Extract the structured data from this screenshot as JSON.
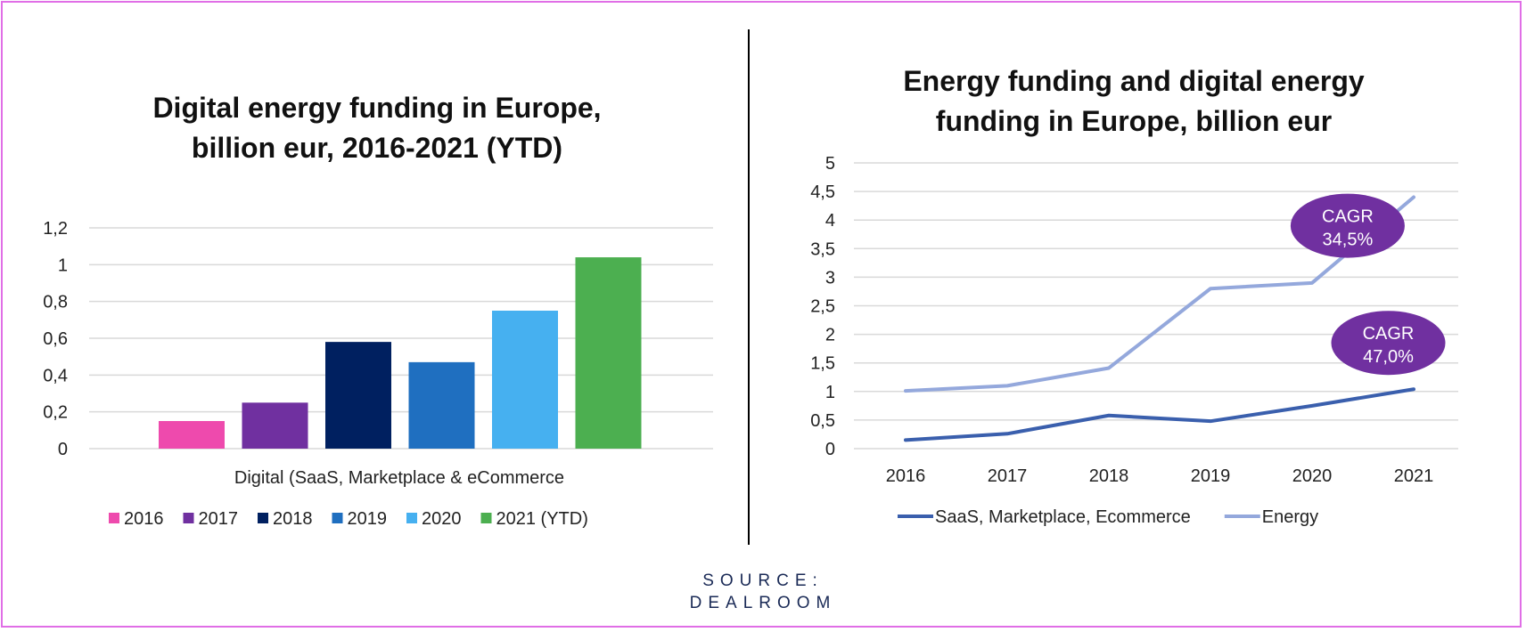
{
  "source_line1": "SOURCE:",
  "source_line2": "DEALROOM",
  "chart_data": [
    {
      "type": "bar",
      "title_lines": [
        "Digital energy funding in Europe,",
        "billion eur, 2016-2021 (YTD)"
      ],
      "category": "Digital (SaaS, Marketplace & eCommerce",
      "y_ticks": [
        "0",
        "0,2",
        "0,4",
        "0,6",
        "0,8",
        "1",
        "1,2"
      ],
      "ylim": [
        0,
        1.2
      ],
      "grid": true,
      "legend_position": "bottom",
      "series": [
        {
          "name": "2016",
          "value": 0.15,
          "color": "#ee4aad"
        },
        {
          "name": "2017",
          "value": 0.25,
          "color": "#7030a0"
        },
        {
          "name": "2018",
          "value": 0.58,
          "color": "#002060"
        },
        {
          "name": "2019",
          "value": 0.47,
          "color": "#1f6fc0"
        },
        {
          "name": "2020",
          "value": 0.75,
          "color": "#46b0f0"
        },
        {
          "name": "2021 (YTD)",
          "value": 1.04,
          "color": "#4caf50"
        }
      ]
    },
    {
      "type": "line",
      "title_lines": [
        "Energy funding and digital energy",
        "funding in Europe, billion eur"
      ],
      "x": [
        "2016",
        "2017",
        "2018",
        "2019",
        "2020",
        "2021"
      ],
      "y_ticks": [
        "0",
        "0,5",
        "1",
        "1,5",
        "2",
        "2,5",
        "3",
        "3,5",
        "4",
        "4,5",
        "5"
      ],
      "ylim": [
        0,
        5
      ],
      "grid": true,
      "legend_position": "bottom",
      "series": [
        {
          "name": "SaaS, Marketplace, Ecommerce",
          "values": [
            0.15,
            0.26,
            0.58,
            0.48,
            0.75,
            1.04
          ],
          "color": "#3a5fad"
        },
        {
          "name": "Energy",
          "values": [
            1.01,
            1.1,
            1.41,
            2.8,
            2.9,
            4.4
          ],
          "color": "#94a8dc"
        }
      ],
      "annotations": [
        {
          "lines": [
            "CAGR",
            "34,5%"
          ],
          "x": 4.35,
          "y": 3.9,
          "color": "#7030a0"
        },
        {
          "lines": [
            "CAGR",
            "47,0%"
          ],
          "x": 4.75,
          "y": 1.85,
          "color": "#7030a0"
        }
      ]
    }
  ]
}
